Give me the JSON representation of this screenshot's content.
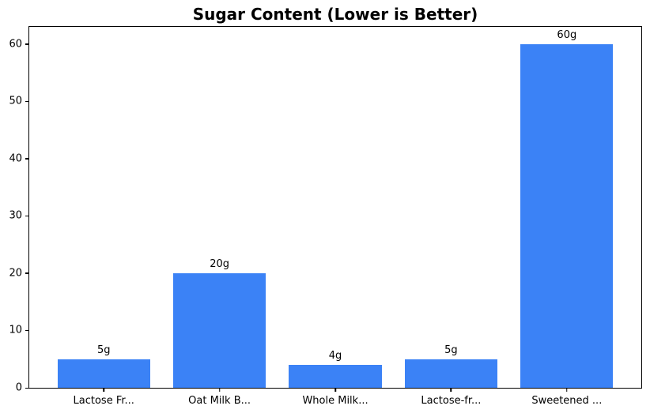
{
  "chart_data": {
    "type": "bar",
    "title": "Sugar Content (Lower is Better)",
    "categories": [
      "Lactose Fr...",
      "Oat Milk B...",
      "Whole Milk...",
      "Lactose-fr...",
      "Sweetened ..."
    ],
    "values": [
      5,
      20,
      4,
      5,
      60
    ],
    "bar_labels": [
      "5g",
      "20g",
      "4g",
      "5g",
      "60g"
    ],
    "y_ticks": [
      0,
      10,
      20,
      30,
      40,
      50,
      60
    ],
    "ylim": [
      0,
      63
    ],
    "xlabel": "",
    "ylabel": "",
    "bar_color": "#3b82f6",
    "axis_color": "#000000",
    "background_color": "#ffffff",
    "grid": false,
    "legend_position": "none"
  }
}
